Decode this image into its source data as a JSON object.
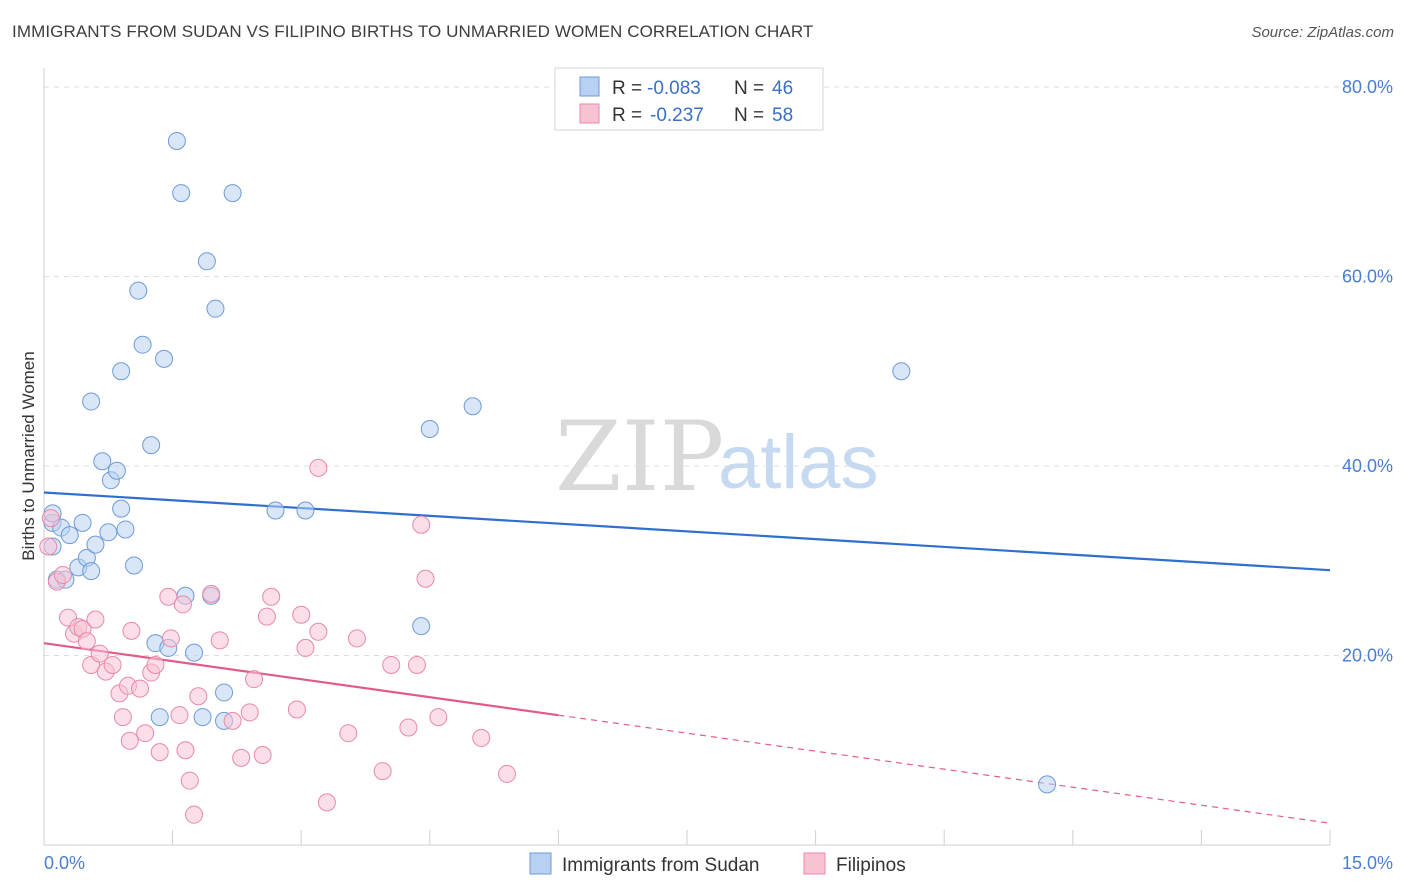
{
  "title": "IMMIGRANTS FROM SUDAN VS FILIPINO BIRTHS TO UNMARRIED WOMEN CORRELATION CHART",
  "source": "Source: ZipAtlas.com",
  "watermark": {
    "left": "ZIP",
    "right": "atlas"
  },
  "colors": {
    "blue_fill": "#b8d1f2",
    "blue_stroke": "#6f9ad8",
    "blue_line": "#2f6fce",
    "pink_fill": "#f7c3d3",
    "pink_stroke": "#e889a9",
    "pink_line": "#e05b8c",
    "grid": "#dddddd",
    "axis_text": "#4a7fcf"
  },
  "legend": {
    "rows": [
      {
        "r_label": "R =",
        "r_value": "-0.083",
        "n_label": "N =",
        "n_value": "46",
        "series": "blue"
      },
      {
        "r_label": "R =",
        "r_value": "-0.237",
        "n_label": "N =",
        "n_value": "58",
        "series": "pink"
      }
    ]
  },
  "chart_data": {
    "type": "scatter",
    "title": "IMMIGRANTS FROM SUDAN VS FILIPINO BIRTHS TO UNMARRIED WOMEN CORRELATION CHART",
    "xlabel": "",
    "ylabel": "Births to Unmarried Women",
    "xlim": [
      0,
      15
    ],
    "ylim": [
      0,
      82
    ],
    "x_tick_labels": [
      "0.0%",
      "15.0%"
    ],
    "y_ticks": [
      20,
      40,
      60,
      80
    ],
    "y_tick_labels": [
      "20.0%",
      "40.0%",
      "60.0%",
      "80.0%"
    ],
    "grid": true,
    "legend_position": "top-center",
    "series": [
      {
        "name": "Immigrants from Sudan",
        "color": "blue",
        "trend": {
          "x": [
            0,
            15
          ],
          "y": [
            37.2,
            29.0
          ],
          "dashed_from": null
        },
        "points": [
          [
            0.1,
            34.0
          ],
          [
            0.1,
            35.0
          ],
          [
            0.15,
            28.0
          ],
          [
            0.2,
            33.5
          ],
          [
            0.25,
            28.0
          ],
          [
            0.3,
            32.7
          ],
          [
            0.4,
            29.3
          ],
          [
            0.45,
            34.0
          ],
          [
            0.5,
            30.3
          ],
          [
            0.55,
            28.9
          ],
          [
            0.6,
            31.7
          ],
          [
            0.68,
            40.5
          ],
          [
            0.75,
            33.0
          ],
          [
            0.78,
            38.5
          ],
          [
            0.85,
            39.5
          ],
          [
            0.9,
            35.5
          ],
          [
            0.95,
            33.3
          ],
          [
            1.05,
            29.5
          ],
          [
            0.55,
            46.8
          ],
          [
            0.9,
            50.0
          ],
          [
            1.1,
            58.5
          ],
          [
            1.15,
            52.8
          ],
          [
            1.25,
            42.2
          ],
          [
            1.3,
            21.3
          ],
          [
            1.35,
            13.5
          ],
          [
            1.4,
            51.3
          ],
          [
            1.45,
            20.8
          ],
          [
            1.55,
            74.3
          ],
          [
            1.6,
            68.8
          ],
          [
            1.65,
            26.3
          ],
          [
            1.75,
            20.3
          ],
          [
            1.85,
            13.5
          ],
          [
            1.9,
            61.6
          ],
          [
            1.95,
            26.3
          ],
          [
            2.0,
            56.6
          ],
          [
            2.1,
            16.1
          ],
          [
            2.1,
            13.1
          ],
          [
            2.2,
            68.8
          ],
          [
            2.7,
            35.3
          ],
          [
            3.05,
            35.3
          ],
          [
            4.4,
            23.1
          ],
          [
            4.5,
            43.9
          ],
          [
            5.0,
            46.3
          ],
          [
            10.0,
            50.0
          ],
          [
            11.7,
            6.4
          ],
          [
            0.1,
            31.5
          ]
        ]
      },
      {
        "name": "Filipinos",
        "color": "pink",
        "trend": {
          "x": [
            0,
            15
          ],
          "y": [
            21.3,
            2.3
          ],
          "dashed_from": 6.0
        },
        "points": [
          [
            0.05,
            31.5
          ],
          [
            0.08,
            34.5
          ],
          [
            0.15,
            27.8
          ],
          [
            0.22,
            28.5
          ],
          [
            0.28,
            24.0
          ],
          [
            0.35,
            22.3
          ],
          [
            0.4,
            23.0
          ],
          [
            0.45,
            22.8
          ],
          [
            0.5,
            21.5
          ],
          [
            0.55,
            19.0
          ],
          [
            0.6,
            23.8
          ],
          [
            0.65,
            20.2
          ],
          [
            0.72,
            18.3
          ],
          [
            0.8,
            19.0
          ],
          [
            0.88,
            16.0
          ],
          [
            0.92,
            13.5
          ],
          [
            0.98,
            16.8
          ],
          [
            1.02,
            22.6
          ],
          [
            1.12,
            16.5
          ],
          [
            1.18,
            11.8
          ],
          [
            1.25,
            18.2
          ],
          [
            1.3,
            19.0
          ],
          [
            1.35,
            9.8
          ],
          [
            1.45,
            26.2
          ],
          [
            1.48,
            21.8
          ],
          [
            1.58,
            13.7
          ],
          [
            1.62,
            25.4
          ],
          [
            1.65,
            10.0
          ],
          [
            1.7,
            6.8
          ],
          [
            1.75,
            3.2
          ],
          [
            1.8,
            15.7
          ],
          [
            1.95,
            26.5
          ],
          [
            2.05,
            21.6
          ],
          [
            2.2,
            13.1
          ],
          [
            2.3,
            9.2
          ],
          [
            2.4,
            14.0
          ],
          [
            2.45,
            17.5
          ],
          [
            2.55,
            9.5
          ],
          [
            2.6,
            24.1
          ],
          [
            2.65,
            26.2
          ],
          [
            2.95,
            14.3
          ],
          [
            3.0,
            24.3
          ],
          [
            3.05,
            20.8
          ],
          [
            3.2,
            22.5
          ],
          [
            3.3,
            4.5
          ],
          [
            3.55,
            11.8
          ],
          [
            3.65,
            21.8
          ],
          [
            3.95,
            7.8
          ],
          [
            4.05,
            19.0
          ],
          [
            4.25,
            12.4
          ],
          [
            4.35,
            19.0
          ],
          [
            4.4,
            33.8
          ],
          [
            4.45,
            28.1
          ],
          [
            4.6,
            13.5
          ],
          [
            5.1,
            11.3
          ],
          [
            5.4,
            7.5
          ],
          [
            3.2,
            39.8
          ],
          [
            1.0,
            11.0
          ]
        ]
      }
    ]
  },
  "bottom_legend": [
    {
      "label": "Immigrants from Sudan",
      "series": "blue"
    },
    {
      "label": "Filipinos",
      "series": "pink"
    }
  ]
}
